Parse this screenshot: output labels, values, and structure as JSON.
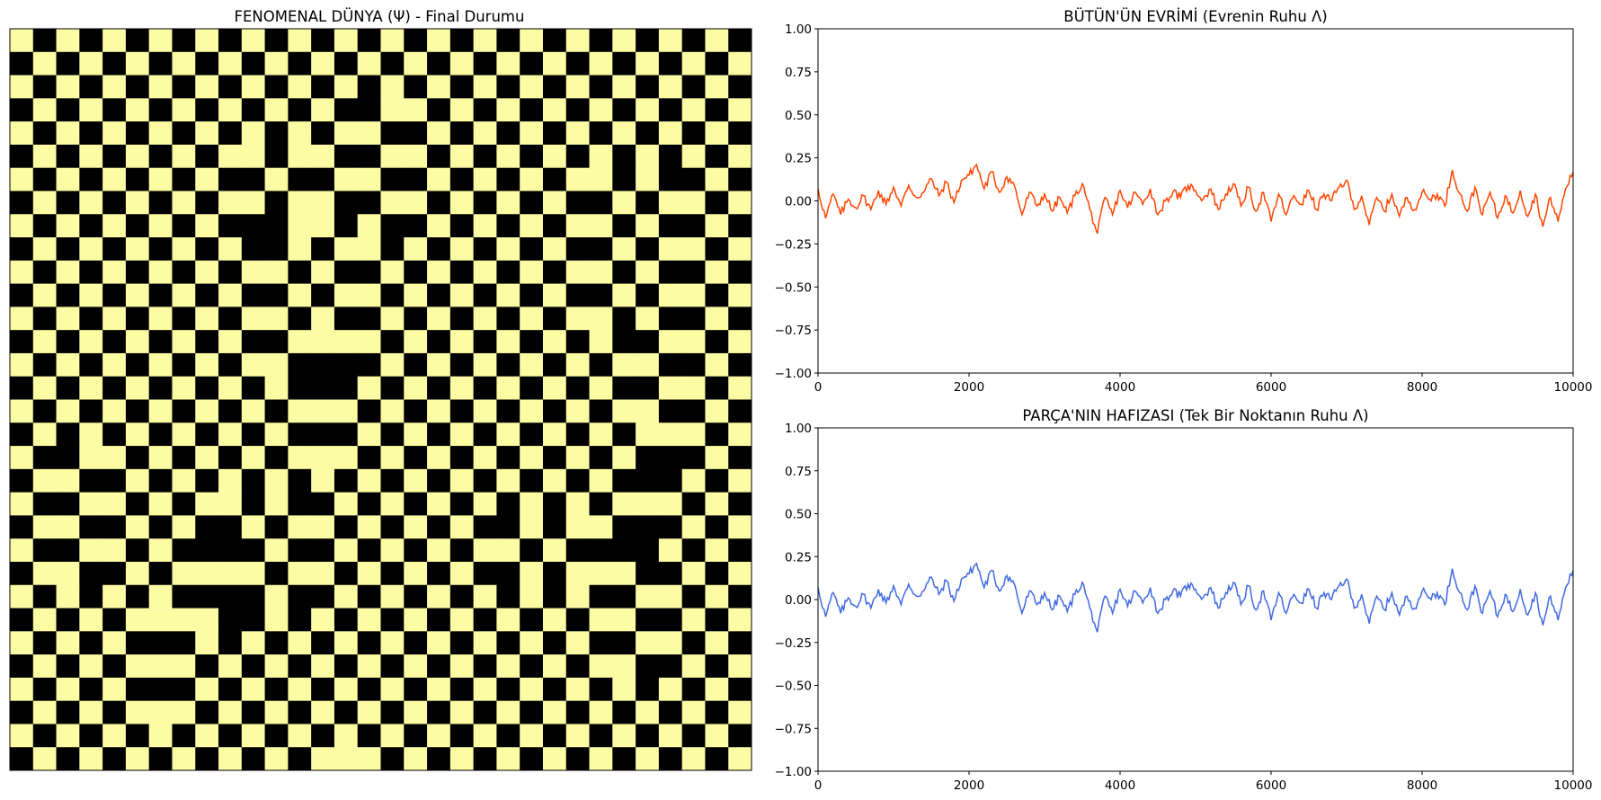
{
  "chart_data": [
    {
      "type": "heatmap",
      "title": "FENOMENAL DÜNYA (Ψ) - Final Durumu",
      "rows": 32,
      "cols": 32,
      "colors": {
        "high": "#000000",
        "low": "#fcfca4"
      },
      "pattern": "checkerboard with domain defects",
      "axes_visible": false
    },
    {
      "type": "line",
      "title": "BÜTÜN'ÜN EVRİMİ (Evrenin Ruhu Λ)",
      "xlim": [
        0,
        10000
      ],
      "ylim": [
        -1.0,
        1.0
      ],
      "xticks": [
        "0",
        "2000",
        "4000",
        "6000",
        "8000",
        "10000"
      ],
      "yticks": [
        "1.00",
        "0.75",
        "0.50",
        "0.25",
        "0.00",
        "−0.25",
        "−0.50",
        "−0.75",
        "−1.00"
      ],
      "color": "#ff4500",
      "x": [
        0,
        100,
        200,
        300,
        400,
        500,
        600,
        700,
        800,
        900,
        1000,
        1100,
        1200,
        1300,
        1400,
        1500,
        1600,
        1700,
        1800,
        1900,
        2000,
        2100,
        2200,
        2300,
        2400,
        2500,
        2600,
        2700,
        2800,
        2900,
        3000,
        3100,
        3200,
        3300,
        3400,
        3500,
        3600,
        3700,
        3800,
        3900,
        4000,
        4100,
        4200,
        4300,
        4400,
        4500,
        4600,
        4700,
        4800,
        4900,
        5000,
        5100,
        5200,
        5300,
        5400,
        5500,
        5600,
        5700,
        5800,
        5900,
        6000,
        6100,
        6200,
        6300,
        6400,
        6500,
        6600,
        6700,
        6800,
        6900,
        7000,
        7100,
        7200,
        7300,
        7400,
        7500,
        7600,
        7700,
        7800,
        7900,
        8000,
        8100,
        8200,
        8300,
        8400,
        8500,
        8600,
        8700,
        8800,
        8900,
        9000,
        9100,
        9200,
        9300,
        9400,
        9500,
        9600,
        9700,
        9800,
        9900,
        10000
      ],
      "y": [
        0.07,
        -0.1,
        0.04,
        -0.08,
        0.01,
        -0.04,
        0.03,
        -0.05,
        0.06,
        -0.02,
        0.08,
        -0.03,
        0.09,
        0.02,
        0.05,
        0.13,
        0.03,
        0.11,
        -0.01,
        0.12,
        0.15,
        0.21,
        0.07,
        0.17,
        0.05,
        0.14,
        0.09,
        -0.08,
        0.05,
        -0.03,
        0.04,
        -0.06,
        0.02,
        -0.07,
        0.03,
        0.1,
        -0.05,
        -0.19,
        0.02,
        -0.08,
        0.06,
        -0.04,
        0.05,
        -0.02,
        0.07,
        -0.08,
        0.0,
        0.05,
        0.02,
        0.09,
        0.06,
        0.01,
        0.07,
        -0.05,
        0.04,
        0.1,
        -0.03,
        0.08,
        -0.06,
        0.05,
        -0.12,
        0.04,
        -0.08,
        0.03,
        -0.02,
        0.06,
        -0.05,
        0.04,
        0.0,
        0.08,
        0.12,
        -0.05,
        0.03,
        -0.14,
        0.02,
        -0.06,
        0.04,
        -0.09,
        0.02,
        -0.05,
        0.05,
        0.01,
        0.04,
        -0.03,
        0.18,
        0.04,
        -0.06,
        0.08,
        -0.08,
        0.05,
        -0.1,
        0.03,
        -0.07,
        0.06,
        -0.09,
        0.04,
        -0.15,
        0.02,
        -0.12,
        0.07,
        0.17
      ]
    },
    {
      "type": "line",
      "title": "PARÇA'NIN HAFIZASI (Tek Bir Noktanın Ruhu Λ)",
      "xlim": [
        0,
        10000
      ],
      "ylim": [
        -1.0,
        1.0
      ],
      "xticks": [
        "0",
        "2000",
        "4000",
        "6000",
        "8000",
        "10000"
      ],
      "yticks": [
        "1.00",
        "0.75",
        "0.50",
        "0.25",
        "0.00",
        "−0.25",
        "−0.50",
        "−0.75",
        "−1.00"
      ],
      "color": "#4169e1",
      "x": [
        0,
        100,
        200,
        300,
        400,
        500,
        600,
        700,
        800,
        900,
        1000,
        1100,
        1200,
        1300,
        1400,
        1500,
        1600,
        1700,
        1800,
        1900,
        2000,
        2100,
        2200,
        2300,
        2400,
        2500,
        2600,
        2700,
        2800,
        2900,
        3000,
        3100,
        3200,
        3300,
        3400,
        3500,
        3600,
        3700,
        3800,
        3900,
        4000,
        4100,
        4200,
        4300,
        4400,
        4500,
        4600,
        4700,
        4800,
        4900,
        5000,
        5100,
        5200,
        5300,
        5400,
        5500,
        5600,
        5700,
        5800,
        5900,
        6000,
        6100,
        6200,
        6300,
        6400,
        6500,
        6600,
        6700,
        6800,
        6900,
        7000,
        7100,
        7200,
        7300,
        7400,
        7500,
        7600,
        7700,
        7800,
        7900,
        8000,
        8100,
        8200,
        8300,
        8400,
        8500,
        8600,
        8700,
        8800,
        8900,
        9000,
        9100,
        9200,
        9300,
        9400,
        9500,
        9600,
        9700,
        9800,
        9900,
        10000
      ],
      "y": [
        0.07,
        -0.1,
        0.04,
        -0.08,
        0.01,
        -0.04,
        0.03,
        -0.05,
        0.06,
        -0.02,
        0.08,
        -0.03,
        0.09,
        0.02,
        0.05,
        0.13,
        0.03,
        0.11,
        -0.01,
        0.12,
        0.15,
        0.21,
        0.07,
        0.17,
        0.05,
        0.14,
        0.09,
        -0.08,
        0.05,
        -0.03,
        0.04,
        -0.06,
        0.02,
        -0.07,
        0.03,
        0.1,
        -0.05,
        -0.19,
        0.02,
        -0.08,
        0.06,
        -0.04,
        0.05,
        -0.02,
        0.07,
        -0.08,
        0.0,
        0.05,
        0.02,
        0.09,
        0.06,
        0.01,
        0.07,
        -0.05,
        0.04,
        0.1,
        -0.03,
        0.08,
        -0.06,
        0.05,
        -0.12,
        0.04,
        -0.08,
        0.03,
        -0.02,
        0.06,
        -0.05,
        0.04,
        0.0,
        0.08,
        0.12,
        -0.05,
        0.03,
        -0.14,
        0.02,
        -0.06,
        0.04,
        -0.09,
        0.02,
        -0.05,
        0.05,
        0.01,
        0.04,
        -0.03,
        0.18,
        0.04,
        -0.06,
        0.08,
        -0.08,
        0.05,
        -0.1,
        0.03,
        -0.07,
        0.06,
        -0.09,
        0.04,
        -0.15,
        0.02,
        -0.12,
        0.07,
        0.17
      ]
    }
  ]
}
